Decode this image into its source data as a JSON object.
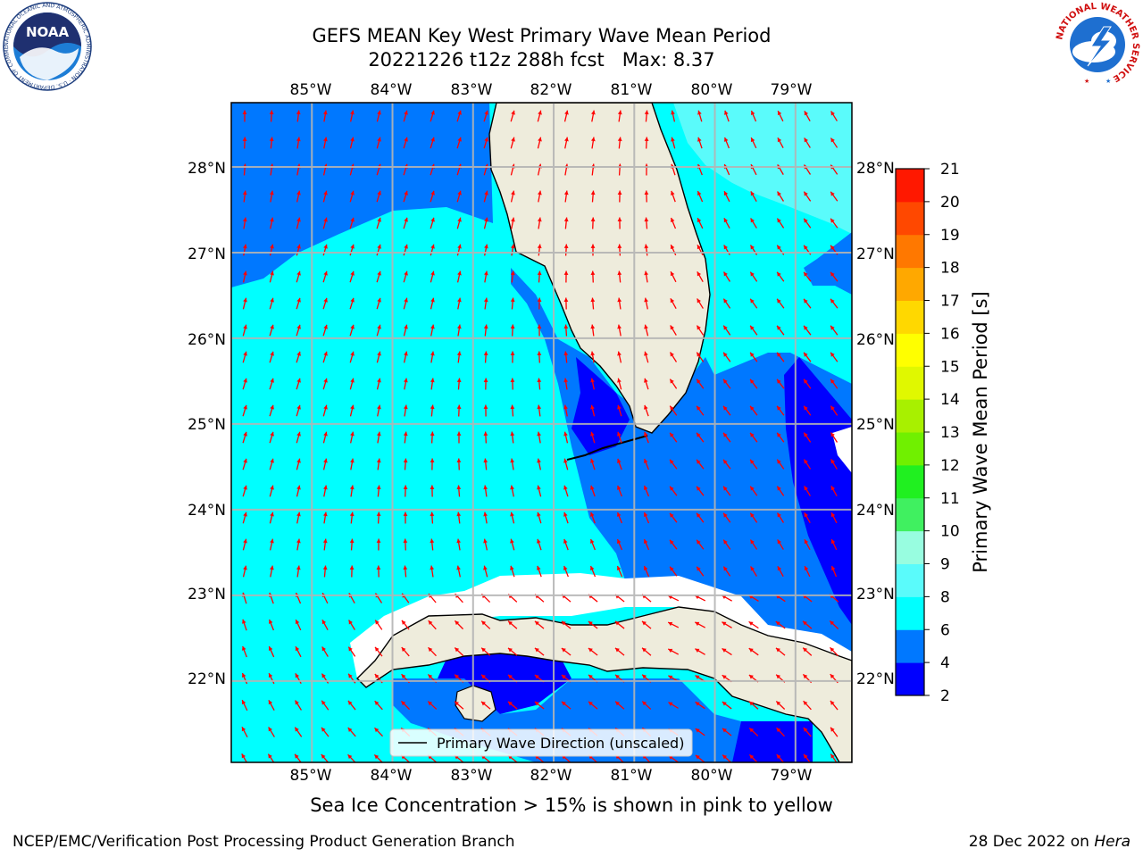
{
  "header": {
    "title_line1": "GEFS MEAN Key West Primary Wave Mean Period",
    "title_line2": "20221226 t12z 288h fcst   Max: 8.37"
  },
  "logos": {
    "left": "NOAA",
    "left_ring_text": "NATIONAL OCEANIC AND ATMOSPHERIC ADMINISTRATION · U.S. DEPARTMENT OF COMMERCE",
    "right_ring_text": "NATIONAL WEATHER SERVICE"
  },
  "map": {
    "lon_labels": [
      "85°W",
      "84°W",
      "83°W",
      "82°W",
      "81°W",
      "80°W",
      "79°W"
    ],
    "lat_labels": [
      "28°N",
      "27°N",
      "26°N",
      "25°N",
      "24°N",
      "23°N",
      "22°N"
    ],
    "lon_range": [
      -86,
      -78.3
    ],
    "lat_range": [
      21.05,
      28.75
    ],
    "legend_label": "Primary Wave Direction (unscaled)",
    "arrow_color": "#ff0000",
    "land_color": "#eeecdc"
  },
  "colorbar": {
    "label": "Primary Wave Mean Period [s]",
    "ticks": [
      "2",
      "4",
      "6",
      "8",
      "9",
      "10",
      "11",
      "12",
      "13",
      "14",
      "15",
      "16",
      "17",
      "18",
      "19",
      "20",
      "21"
    ],
    "colors": [
      "#0000ff",
      "#0078ff",
      "#00ffff",
      "#5afbfb",
      "#98fde0",
      "#40f060",
      "#20f020",
      "#70f000",
      "#a8f000",
      "#e0f800",
      "#ffff00",
      "#ffd800",
      "#ffa800",
      "#ff7800",
      "#ff4800",
      "#ff1800"
    ]
  },
  "footer": {
    "note": "Sea Ice Concentration > 15% is shown in pink to yellow",
    "credit": "NCEP/EMC/Verification Post Processing Product Generation Branch",
    "date": "28 Dec 2022 on ",
    "host": "Hera"
  }
}
